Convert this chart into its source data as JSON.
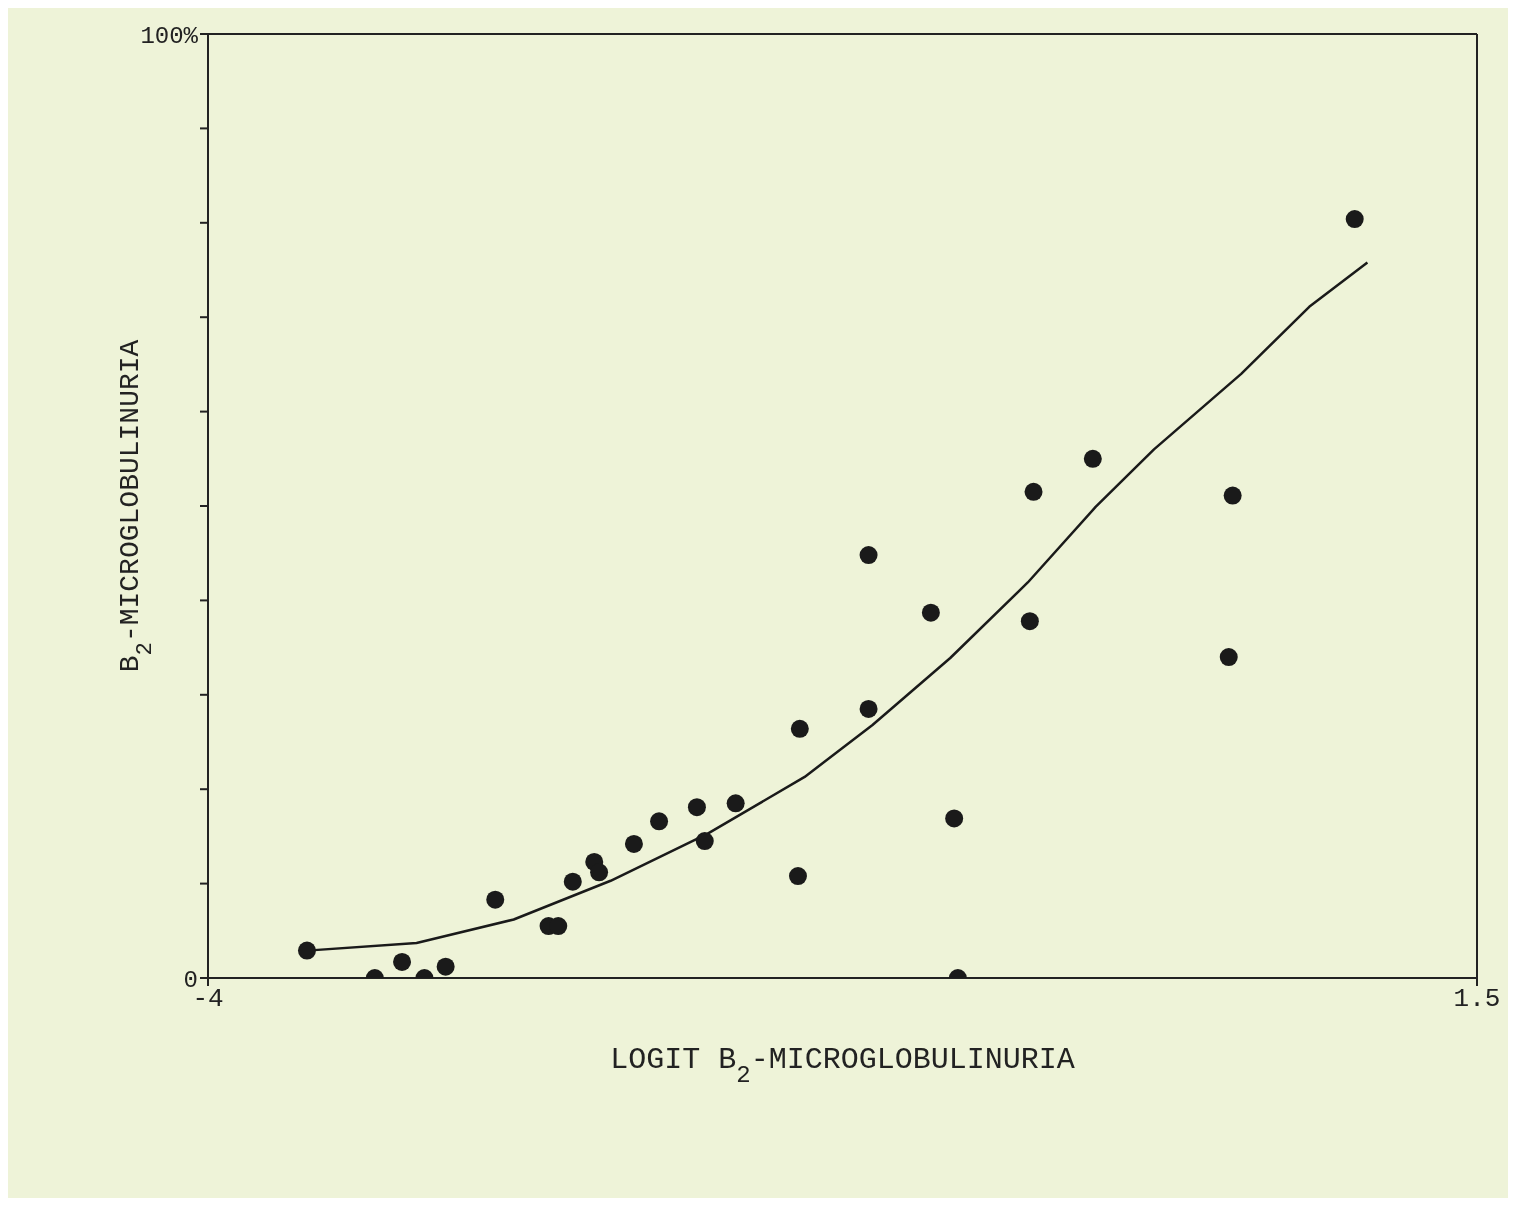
{
  "chart_data": {
    "type": "scatter",
    "xlabel": "LOGIT B$_{2}$-MICROGLOBULINURIA",
    "ylabel": "B$_{2}$-MICROGLOBULINURIA",
    "xlim": [
      -4,
      1.5
    ],
    "xticks": [
      -4,
      1.5
    ],
    "ylim": [
      0,
      100
    ],
    "yticks": [
      {
        "value": 0,
        "label": "0"
      },
      {
        "value": 10,
        "label": null
      },
      {
        "value": 20,
        "label": null
      },
      {
        "value": 30,
        "label": null
      },
      {
        "value": 40,
        "label": null
      },
      {
        "value": 50,
        "label": null
      },
      {
        "value": 60,
        "label": null
      },
      {
        "value": 70,
        "label": null
      },
      {
        "value": 80,
        "label": null
      },
      {
        "value": 90,
        "label": null
      },
      {
        "value": 100,
        "label": "100%"
      }
    ],
    "grid": false,
    "series": [
      {
        "color": "#1a1a1a",
        "marker": "circle",
        "x": [
          -3.571,
          -3.277,
          -3.159,
          -3.062,
          -2.97,
          -2.755,
          -2.524,
          -2.482,
          -2.419,
          -2.326,
          -2.305,
          -2.154,
          -2.045,
          -1.881,
          -1.847,
          -1.713,
          -1.443,
          -1.435,
          -1.137,
          -1.137,
          -0.867,
          -0.766,
          -0.75,
          -0.422,
          -0.438,
          -0.165,
          0.441,
          0.424,
          0.97
        ],
        "values": [
          2.9,
          0,
          1.7,
          0,
          1.2,
          8.3,
          5.5,
          5.5,
          10.2,
          12.3,
          11.2,
          14.2,
          16.6,
          18.1,
          14.5,
          18.5,
          10.8,
          26.4,
          44.8,
          28.5,
          38.7,
          16.9,
          0,
          51.5,
          37.8,
          55,
          51.1,
          34,
          80.4
        ]
      },
      {
        "type": "line",
        "color": "#1a1a1a",
        "line_style": "solid",
        "x": [
          -3.571,
          -3.096,
          -2.675,
          -2.255,
          -1.834,
          -1.414,
          -1.12,
          -0.783,
          -0.447,
          -0.153,
          0.1,
          0.478,
          0.773,
          1.025
        ],
        "values": [
          2.9,
          3.7,
          6.2,
          10.3,
          15.3,
          21.3,
          26.8,
          33.9,
          41.9,
          49.9,
          56,
          64,
          71.1,
          75.8
        ]
      }
    ]
  }
}
